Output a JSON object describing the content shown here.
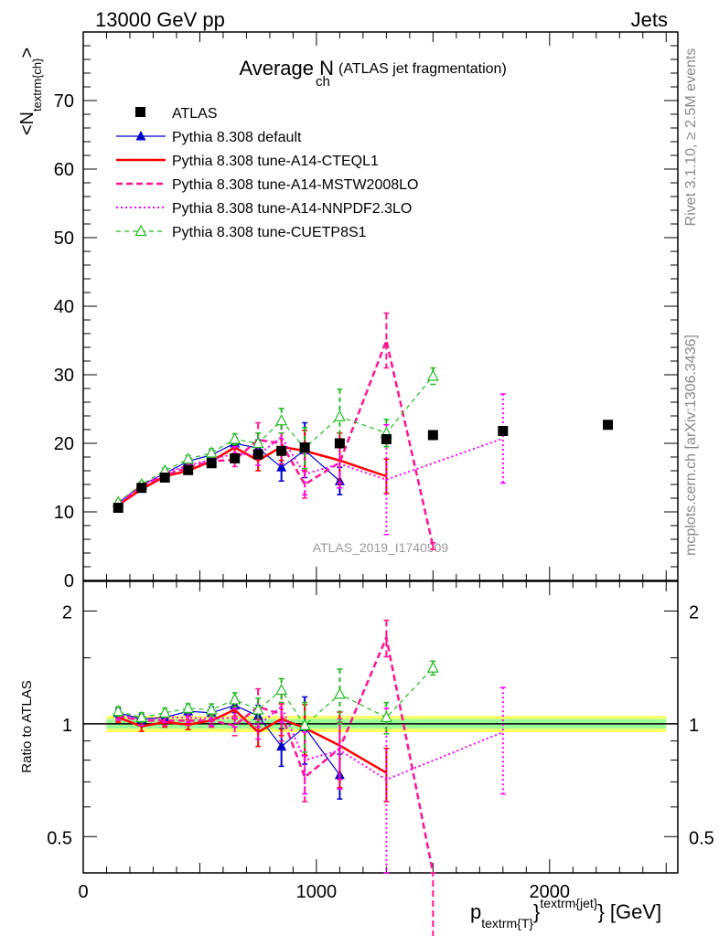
{
  "header": {
    "left": "13000 GeV pp",
    "right": "Jets"
  },
  "side_labels": {
    "rivet": "Rivet 3.1.10, ≥ 2.5M events",
    "mcplots": "mcplots.cern.ch [arXiv:1306.3436]"
  },
  "colors": {
    "atlas": "#000000",
    "default": "#0000cc",
    "cteql1": "#ff0000",
    "mstw": "#ff1493",
    "nnpdf": "#ff00ff",
    "cuetp8s1": "#22bb22",
    "band_inner": "#99ff99",
    "band_outer": "#ffff66"
  },
  "chart_data": [
    {
      "type": "scatter",
      "panel": "main",
      "title": "Average N",
      "title_sub": "ch",
      "title_note": "(ATLAS jet fragmentation)",
      "ylabel": "<N",
      "ylabel_sub": "textrm{ch}",
      "ylabel_end": ">",
      "watermark": "ATLAS_2019_I1740909",
      "xlim": [
        0,
        2550
      ],
      "ylim": [
        0,
        80
      ],
      "yticks": [
        0,
        10,
        20,
        30,
        40,
        50,
        60,
        70
      ],
      "ytick_labels": [
        "0",
        "10",
        "20",
        "30",
        "40",
        "50",
        "60",
        "70"
      ],
      "grid": false,
      "legend_position": "top-left",
      "series": [
        {
          "name": "ATLAS",
          "key": "atlas",
          "style": "square",
          "x": [
            150,
            250,
            350,
            450,
            550,
            650,
            750,
            850,
            950,
            1100,
            1300,
            1500,
            1800,
            2250
          ],
          "y": [
            10.6,
            13.5,
            15.0,
            16.1,
            17.1,
            17.8,
            18.4,
            18.9,
            19.4,
            20.0,
            20.6,
            21.2,
            21.8,
            22.7
          ]
        },
        {
          "name": "Pythia 8.308 default",
          "key": "default",
          "style": "line-tri",
          "x": [
            150,
            250,
            350,
            450,
            550,
            650,
            750,
            850,
            950,
            1100
          ],
          "y": [
            11.3,
            13.9,
            15.6,
            17.4,
            18.3,
            20.0,
            19.3,
            16.5,
            19.0,
            14.5
          ],
          "err": [
            0.3,
            0.4,
            0.4,
            0.5,
            0.6,
            0.8,
            1.2,
            2.0,
            4.0,
            2.0
          ]
        },
        {
          "name": "Pythia 8.308 tune-A14-CTEQL1",
          "key": "cteql1",
          "style": "solid",
          "x": [
            150,
            250,
            350,
            450,
            550,
            650,
            750,
            850,
            950,
            1100,
            1300
          ],
          "y": [
            11.0,
            13.3,
            15.2,
            16.0,
            17.4,
            19.4,
            17.5,
            19.5,
            18.9,
            17.5,
            15.2
          ],
          "err": [
            0.3,
            0.4,
            0.5,
            0.5,
            0.6,
            1.0,
            1.5,
            2.0,
            3.0,
            4.0,
            2.5
          ]
        },
        {
          "name": "Pythia 8.308 tune-A14-MSTW2008LO",
          "key": "mstw",
          "style": "dashed",
          "x": [
            150,
            250,
            350,
            450,
            550,
            650,
            750,
            850,
            950,
            1100,
            1300,
            1500
          ],
          "y": [
            11.1,
            13.8,
            15.3,
            16.5,
            17.4,
            17.6,
            20.5,
            20.0,
            14.0,
            17.2,
            35.0,
            5.0
          ],
          "err": [
            0.3,
            0.4,
            0.5,
            0.5,
            0.6,
            1.0,
            2.5,
            3.0,
            2.0,
            3.0,
            4.0,
            0.5
          ]
        },
        {
          "name": "Pythia 8.308 tune-A14-NNPDF2.3LO",
          "key": "nnpdf",
          "style": "dotted",
          "x": [
            150,
            250,
            350,
            450,
            550,
            650,
            750,
            850,
            950,
            1100,
            1300,
            1800
          ],
          "y": [
            11.2,
            13.8,
            15.6,
            16.8,
            17.6,
            18.5,
            18.3,
            20.9,
            15.5,
            17.0,
            14.7,
            20.7
          ],
          "err": [
            0.3,
            0.4,
            0.5,
            0.5,
            0.6,
            1.0,
            1.5,
            2.0,
            3.0,
            3.5,
            8.0,
            6.5
          ]
        },
        {
          "name": "Pythia 8.308 tune-CUETP8S1",
          "key": "cuetp8s1",
          "style": "dashed-tri",
          "x": [
            150,
            250,
            350,
            450,
            550,
            650,
            750,
            850,
            950,
            1100,
            1300,
            1500
          ],
          "y": [
            11.4,
            14.0,
            16.0,
            17.7,
            18.6,
            20.6,
            20.0,
            23.3,
            19.3,
            23.9,
            21.5,
            29.8
          ],
          "err": [
            0.3,
            0.4,
            0.4,
            0.5,
            0.6,
            0.8,
            1.5,
            1.8,
            3.0,
            4.0,
            2.0,
            1.2
          ]
        }
      ]
    },
    {
      "type": "scatter",
      "panel": "ratio",
      "ylabel": "Ratio to ATLAS",
      "xlabel": "p",
      "xlabel_sub": "textrm{T}",
      "xlabel_sup": "textrm{jet}",
      "xlabel_unit": "[GeV]",
      "xlim": [
        0,
        2550
      ],
      "ylim_log": [
        0.4,
        2.4
      ],
      "yticks": [
        0.5,
        1,
        2
      ],
      "ytick_labels": [
        "0.5",
        "1",
        "2"
      ],
      "xticks": [
        0,
        1000,
        2000
      ],
      "xtick_labels": [
        "0",
        "1000",
        "2000"
      ],
      "reference_band": {
        "x_range": [
          100,
          2500
        ],
        "inner": 0.03,
        "outer": 0.05
      },
      "series": [
        {
          "name": "Pythia 8.308 default",
          "key": "default",
          "style": "line-tri",
          "x": [
            150,
            250,
            350,
            450,
            550,
            650,
            750,
            850,
            950,
            1100
          ],
          "y": [
            1.07,
            1.03,
            1.04,
            1.08,
            1.07,
            1.12,
            1.05,
            0.87,
            0.98,
            0.73
          ],
          "err": [
            0.03,
            0.03,
            0.03,
            0.03,
            0.04,
            0.05,
            0.07,
            0.1,
            0.2,
            0.1
          ]
        },
        {
          "name": "Pythia 8.308 tune-A14-CTEQL1",
          "key": "cteql1",
          "style": "solid",
          "x": [
            150,
            250,
            350,
            450,
            550,
            650,
            750,
            850,
            950,
            1100,
            1300
          ],
          "y": [
            1.04,
            0.985,
            1.01,
            0.995,
            1.02,
            1.09,
            0.95,
            1.03,
            0.975,
            0.875,
            0.74
          ],
          "err": [
            0.03,
            0.03,
            0.03,
            0.03,
            0.04,
            0.06,
            0.08,
            0.1,
            0.15,
            0.2,
            0.12
          ]
        },
        {
          "name": "Pythia 8.308 tune-A14-MSTW2008LO",
          "key": "mstw",
          "style": "dashed",
          "x": [
            150,
            250,
            350,
            450,
            550,
            650,
            750,
            850,
            950,
            1100,
            1300,
            1500
          ],
          "y": [
            1.05,
            1.02,
            1.02,
            1.02,
            1.02,
            0.99,
            1.11,
            1.06,
            0.72,
            0.86,
            1.7,
            0.24
          ],
          "err": [
            0.03,
            0.03,
            0.03,
            0.03,
            0.04,
            0.06,
            0.13,
            0.16,
            0.1,
            0.15,
            0.19,
            0.03
          ]
        },
        {
          "name": "Pythia 8.308 tune-A14-NNPDF2.3LO",
          "key": "nnpdf",
          "style": "dotted",
          "x": [
            150,
            250,
            350,
            450,
            550,
            650,
            750,
            850,
            950,
            1100,
            1300,
            1800
          ],
          "y": [
            1.06,
            1.02,
            1.04,
            1.04,
            1.03,
            1.04,
            0.99,
            1.11,
            0.8,
            0.85,
            0.71,
            0.95
          ],
          "err": [
            0.03,
            0.03,
            0.03,
            0.03,
            0.04,
            0.06,
            0.08,
            0.1,
            0.15,
            0.18,
            0.39,
            0.3
          ]
        },
        {
          "name": "Pythia 8.308 tune-CUETP8S1",
          "key": "cuetp8s1",
          "style": "dashed-tri",
          "x": [
            150,
            250,
            350,
            450,
            550,
            650,
            750,
            850,
            950,
            1100,
            1300,
            1500
          ],
          "y": [
            1.08,
            1.04,
            1.07,
            1.1,
            1.09,
            1.16,
            1.09,
            1.23,
            0.99,
            1.2,
            1.04,
            1.41
          ],
          "err": [
            0.03,
            0.03,
            0.03,
            0.03,
            0.04,
            0.05,
            0.08,
            0.09,
            0.15,
            0.2,
            0.1,
            0.06
          ]
        }
      ]
    }
  ]
}
